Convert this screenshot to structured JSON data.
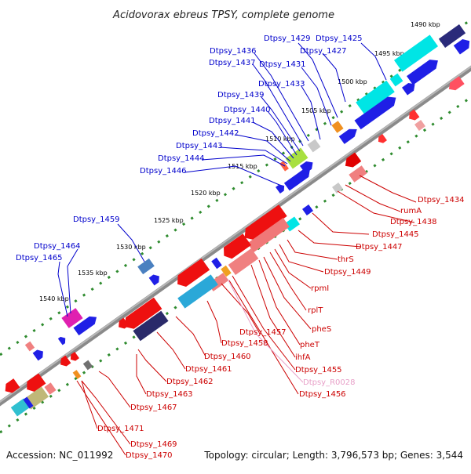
{
  "title": "Acidovorax ebreus TPSY, complete genome",
  "footer": {
    "accession": "Accession: NC_011992",
    "summary": "Topology: circular; Length: 3,796,573 bp; Genes: 3,544"
  },
  "colors": {
    "forward_label": "#0000cc",
    "reverse_label": "#cc0000",
    "rna_label": "#e8a0c8",
    "backbone": "#8a8a8a",
    "tick": "#2e8b2e"
  },
  "kbp_ticks": [
    "1490 kbp",
    "1495 kbp",
    "1500 kbp",
    "1505 kbp",
    "1510 kbp",
    "1515 kbp",
    "1520 kbp",
    "1525 kbp",
    "1530 kbp",
    "1535 kbp",
    "1540 kbp"
  ],
  "upper_labels": [
    "Dtpsy_1425",
    "Dtpsy_1427",
    "Dtpsy_1429",
    "Dtpsy_1431",
    "Dtpsy_1433",
    "Dtpsy_1436",
    "Dtpsy_1437",
    "Dtpsy_1439",
    "Dtpsy_1440",
    "Dtpsy_1441",
    "Dtpsy_1442",
    "Dtpsy_1443",
    "Dtpsy_1444",
    "Dtpsy_1446",
    "Dtpsy_1459",
    "Dtpsy_1464",
    "Dtpsy_1465"
  ],
  "lower_labels": [
    "Dtpsy_1434",
    "rumA",
    "Dtpsy_1438",
    "Dtpsy_1445",
    "Dtpsy_1447",
    "thrS",
    "Dtpsy_1449",
    "rpmI",
    "rplT",
    "pheS",
    "pheT",
    "ihfA",
    "Dtpsy_1455",
    "Dtpsy_R0028",
    "Dtpsy_1456",
    "Dtpsy_1457",
    "Dtpsy_1458",
    "Dtpsy_1460",
    "Dtpsy_1461",
    "Dtpsy_1462",
    "Dtpsy_1463",
    "Dtpsy_1467",
    "Dtpsy_1471",
    "Dtpsy_1469",
    "Dtpsy_1470"
  ]
}
